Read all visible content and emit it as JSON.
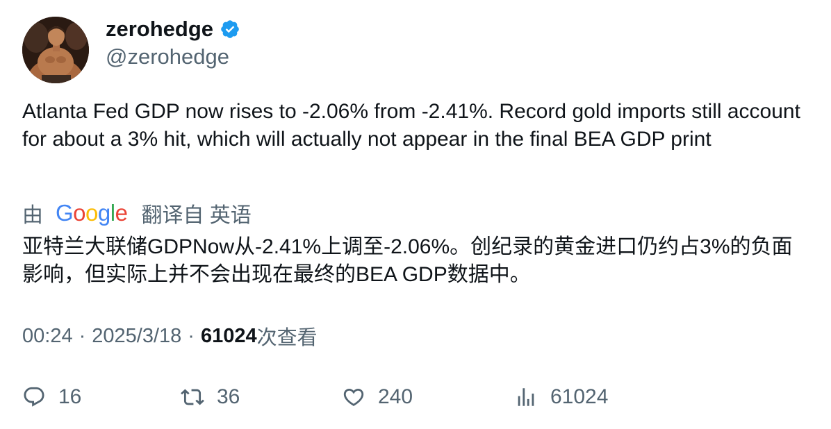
{
  "author": {
    "display_name": "zerohedge",
    "handle": "@zerohedge",
    "verified": true,
    "verified_color": "#1d9bf0"
  },
  "tweet": {
    "text": "Atlanta Fed GDP now rises to -2.06% from -2.41%. Record gold imports still account for about a 3% hit, which will actually not appear in the final BEA GDP print"
  },
  "translation": {
    "prefix": "由",
    "provider": "Google",
    "suffix": "翻译自 英语",
    "text": "亚特兰大联储GDPNow从-2.41%上调至-2.06%。创纪录的黄金进口仍约占3%的负面影响，但实际上并不会出现在最终的BEA GDP数据中。"
  },
  "meta": {
    "time": "00:24",
    "separator": "·",
    "date": "2025/3/18",
    "views_count": "61024",
    "views_label": "次查看"
  },
  "actions": {
    "replies": "16",
    "retweets": "36",
    "likes": "240",
    "views": "61024"
  },
  "icons": {
    "reply": "reply-icon",
    "retweet": "retweet-icon",
    "like": "heart-icon",
    "views": "analytics-icon",
    "verified": "verified-badge-icon"
  },
  "colors": {
    "text_primary": "#0f1419",
    "text_secondary": "#536471",
    "accent": "#1d9bf0"
  }
}
